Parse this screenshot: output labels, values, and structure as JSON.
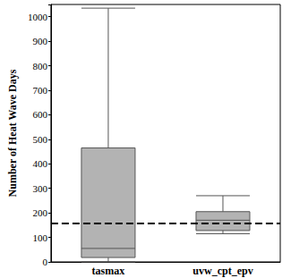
{
  "chart_data": {
    "type": "boxplot",
    "y_label": "Number of Heat Wave Days",
    "categories": [
      "tasmax",
      "uvw_cpt_epv"
    ],
    "boxes": [
      [
        0,
        18,
        55,
        465,
        1035
      ],
      [
        115,
        128,
        170,
        205,
        270
      ]
    ],
    "color": "#b3b3b3",
    "ylim": [
      0,
      1050
    ],
    "yticks": [
      0,
      100,
      200,
      300,
      400,
      500,
      600,
      700,
      800,
      900,
      1000
    ],
    "grid": false,
    "reference_line": {
      "value": 158,
      "line_style": "dashed",
      "color": "#000000"
    }
  }
}
